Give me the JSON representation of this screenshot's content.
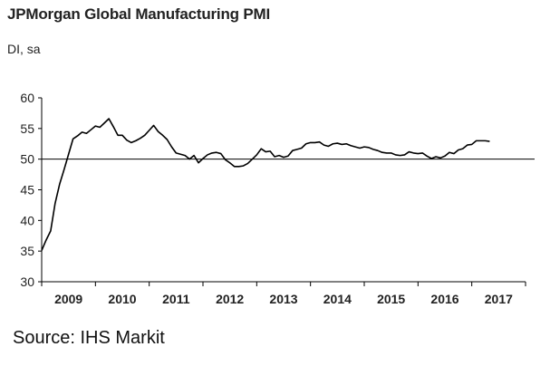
{
  "chart_data": {
    "type": "line",
    "title": "JPMorgan Global Manufacturing PMI",
    "subtitle": "DI, sa",
    "source": "Source: IHS Markit",
    "ylim": [
      30,
      60
    ],
    "y_ticks": [
      30,
      35,
      40,
      45,
      50,
      55,
      60
    ],
    "x_ticks": [
      "2009",
      "2010",
      "2011",
      "2012",
      "2013",
      "2014",
      "2015",
      "2016",
      "2017"
    ],
    "xlim": [
      2009.0,
      2018.0
    ],
    "reference_line": 50,
    "grid": false,
    "line_color": "#000000",
    "series": [
      {
        "x": [
          2009.0,
          2009.083,
          2009.167,
          2009.25,
          2009.333,
          2009.417,
          2009.5,
          2009.583,
          2009.667,
          2009.75,
          2009.833,
          2009.917,
          2010.0,
          2010.083,
          2010.167,
          2010.25,
          2010.333,
          2010.417,
          2010.5,
          2010.583,
          2010.667,
          2010.75,
          2010.833,
          2010.917,
          2011.0,
          2011.083,
          2011.167,
          2011.25,
          2011.333,
          2011.417,
          2011.5,
          2011.583,
          2011.667,
          2011.75,
          2011.833,
          2011.917,
          2012.0,
          2012.083,
          2012.167,
          2012.25,
          2012.333,
          2012.417,
          2012.5,
          2012.583,
          2012.667,
          2012.75,
          2012.833,
          2012.917,
          2013.0,
          2013.083,
          2013.167,
          2013.25,
          2013.333,
          2013.417,
          2013.5,
          2013.583,
          2013.667,
          2013.75,
          2013.833,
          2013.917,
          2014.0,
          2014.083,
          2014.167,
          2014.25,
          2014.333,
          2014.417,
          2014.5,
          2014.583,
          2014.667,
          2014.75,
          2014.833,
          2014.917,
          2015.0,
          2015.083,
          2015.167,
          2015.25,
          2015.333,
          2015.417,
          2015.5,
          2015.583,
          2015.667,
          2015.75,
          2015.833,
          2015.917,
          2016.0,
          2016.083,
          2016.167,
          2016.25,
          2016.333,
          2016.417,
          2016.5,
          2016.583,
          2016.667,
          2016.75,
          2016.833,
          2016.917,
          2017.0,
          2017.083,
          2017.167,
          2017.25,
          2017.333
        ],
        "y": [
          35.1,
          36.8,
          38.3,
          42.8,
          45.9,
          48.3,
          50.8,
          53.3,
          53.8,
          54.4,
          54.2,
          54.8,
          55.4,
          55.2,
          55.9,
          56.6,
          55.3,
          53.9,
          53.9,
          53.1,
          52.7,
          53.0,
          53.4,
          53.9,
          54.7,
          55.5,
          54.5,
          53.9,
          53.2,
          52.0,
          51.0,
          50.8,
          50.6,
          50.0,
          50.6,
          49.4,
          50.1,
          50.7,
          51.0,
          51.1,
          50.9,
          49.9,
          49.4,
          48.8,
          48.8,
          48.9,
          49.3,
          50.0,
          50.7,
          51.7,
          51.2,
          51.3,
          50.4,
          50.6,
          50.3,
          50.5,
          51.4,
          51.6,
          51.8,
          52.5,
          52.7,
          52.7,
          52.8,
          52.3,
          52.1,
          52.5,
          52.6,
          52.4,
          52.5,
          52.2,
          52.0,
          51.8,
          52.0,
          51.9,
          51.6,
          51.4,
          51.1,
          51.0,
          51.0,
          50.7,
          50.6,
          50.7,
          51.2,
          51.0,
          50.9,
          51.0,
          50.5,
          50.1,
          50.4,
          50.2,
          50.5,
          51.1,
          50.9,
          51.5,
          51.7,
          52.3,
          52.4,
          53.0,
          53.0,
          53.0,
          52.9
        ]
      }
    ]
  }
}
